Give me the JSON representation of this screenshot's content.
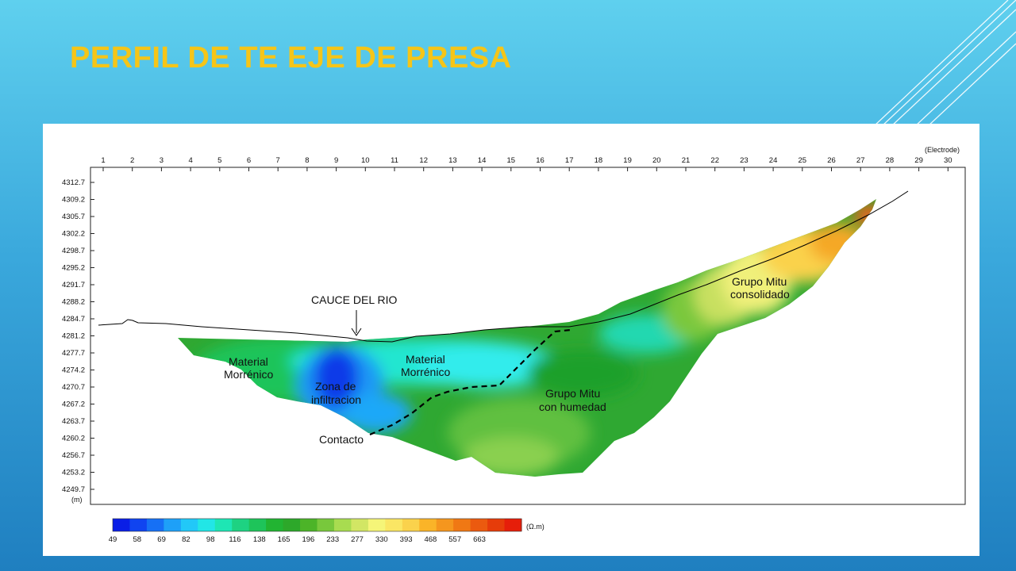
{
  "slide": {
    "title": "PERFIL DE TE EJE DE PRESA"
  },
  "profile": {
    "electrode_label": "(Electrode)",
    "electrodes": [
      "1",
      "2",
      "3",
      "4",
      "5",
      "6",
      "7",
      "8",
      "9",
      "10",
      "11",
      "12",
      "13",
      "14",
      "15",
      "16",
      "17",
      "18",
      "19",
      "20",
      "21",
      "22",
      "23",
      "24",
      "25",
      "26",
      "27",
      "28",
      "29",
      "30"
    ],
    "elevations": [
      "4312.7",
      "4309.2",
      "4305.7",
      "4302.2",
      "4298.7",
      "4295.2",
      "4291.7",
      "4288.2",
      "4284.7",
      "4281.2",
      "4277.7",
      "4274.2",
      "4270.7",
      "4267.2",
      "4263.7",
      "4260.2",
      "4256.7",
      "4253.2",
      "4249.7"
    ],
    "elevation_unit": "(m)",
    "annotations": {
      "cauce": "CAUCE DEL RIO",
      "morrenico1_line1": "Material",
      "morrenico1_line2": "Morrénico",
      "morrenico2_line1": "Material",
      "morrenico2_line2": "Morrénico",
      "infiltracion_line1": "Zona de",
      "infiltracion_line2": "infiltracion",
      "humedad_line1": "Grupo Mitu",
      "humedad_line2": "con humedad",
      "consolidado_line1": "Grupo Mitu",
      "consolidado_line2": "consolidado",
      "contacto": "Contacto"
    },
    "colorscale": {
      "unit": "(Ω.m)",
      "values": [
        "49",
        "58",
        "69",
        "82",
        "98",
        "116",
        "138",
        "165",
        "196",
        "233",
        "277",
        "330",
        "393",
        "468",
        "557",
        "663"
      ],
      "colors": [
        "#0a1ee6",
        "#1044f0",
        "#1670f5",
        "#1ea0f8",
        "#22c8f8",
        "#22e6e6",
        "#1ee6b4",
        "#1ed282",
        "#1ec45a",
        "#22b432",
        "#2da82a",
        "#4cb428",
        "#78c83c",
        "#a8dc50",
        "#d2e664",
        "#f5f578",
        "#fae664",
        "#fad24c",
        "#fab428",
        "#f5961e",
        "#f07814",
        "#eb5a0f",
        "#e63c0a",
        "#e61e0a"
      ]
    }
  }
}
